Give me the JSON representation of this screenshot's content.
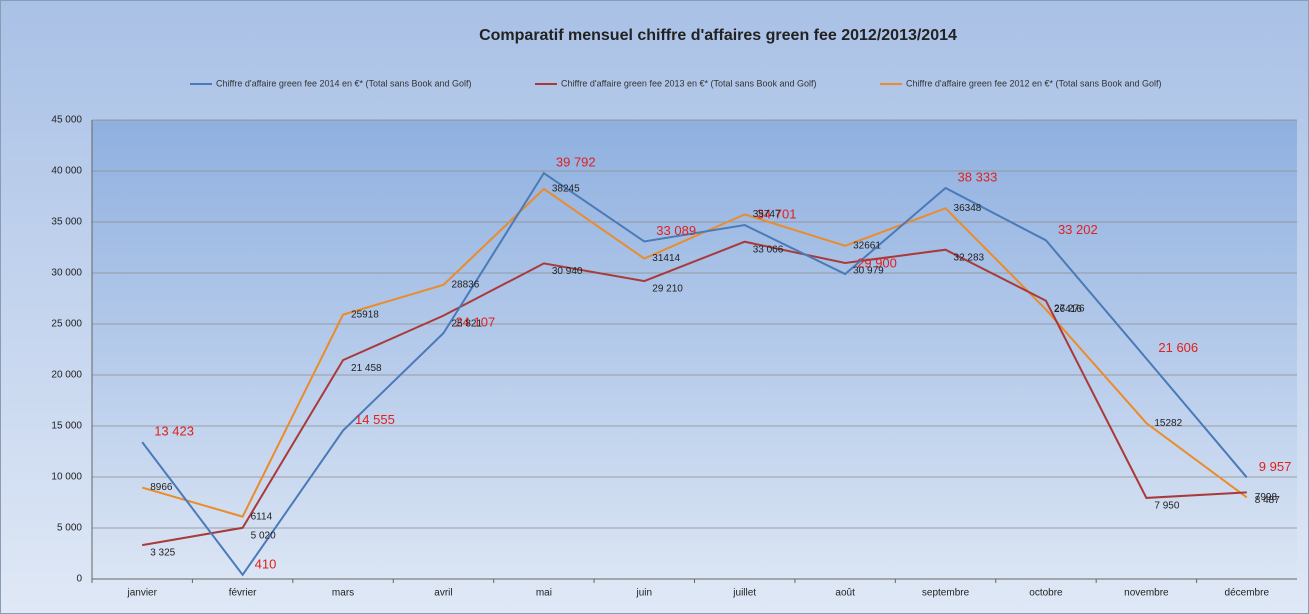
{
  "chart_data": {
    "type": "line",
    "title": "Comparatif mensuel chiffre d'affaires green fee  2012/2013/2014",
    "categories": [
      "janvier",
      "février",
      "mars",
      "avril",
      "mai",
      "juin",
      "juillet",
      "août",
      "septembre",
      "octobre",
      "novembre",
      "décembre"
    ],
    "series": [
      {
        "name": "Chiffre d'affaire green fee 2014 en €* (Total sans Book and Golf)",
        "color": "#4a7ab8",
        "values": [
          13423,
          410,
          14555,
          24107,
          39792,
          33089,
          34701,
          29900,
          38333,
          33202,
          21606,
          9957
        ],
        "value_labels": [
          "13 423",
          "410",
          "14 555",
          "24 107",
          "39 792",
          "33 089",
          "34 701",
          "29 900",
          "38 333",
          "33 202",
          "21 606",
          "9 957"
        ]
      },
      {
        "name": "Chiffre d'affaire green fee 2013 en €* (Total sans Book and Golf)",
        "color": "#a83a3a",
        "values": [
          3325,
          5020,
          21458,
          25821,
          30940,
          29210,
          33066,
          30979,
          32283,
          27276,
          7950,
          8487
        ],
        "value_labels": [
          "3 325",
          "5 020",
          "21 458",
          "25 821",
          "30 940",
          "29 210",
          "33 066",
          "30 979",
          "32 283",
          "27 276",
          "7 950",
          "8 487"
        ]
      },
      {
        "name": "Chiffre d'affaire green fee 2012 en €* (Total sans Book and Golf)",
        "color": "#ea8b2c",
        "values": [
          8966,
          6114,
          25918,
          28836,
          38245,
          31414,
          35747,
          32661,
          36348,
          26416,
          15282,
          7998
        ]
      }
    ],
    "ylim": [
      0,
      45000
    ],
    "yticks": [
      0,
      {
        "value": 5000,
        "label": "5 000"
      },
      {
        "value": 10000,
        "label": "10 000"
      },
      {
        "value": 15000,
        "label": "15 000"
      },
      {
        "value": 20000,
        "label": "20 000"
      },
      {
        "value": 25000,
        "label": "25 000"
      },
      {
        "value": 30000,
        "label": "30 000"
      },
      {
        "value": 35000,
        "label": "35 000"
      },
      {
        "value": 40000,
        "label": "40 000"
      },
      {
        "value": 45000,
        "label": "45 000"
      }
    ],
    "grid": true,
    "legend": "top"
  }
}
